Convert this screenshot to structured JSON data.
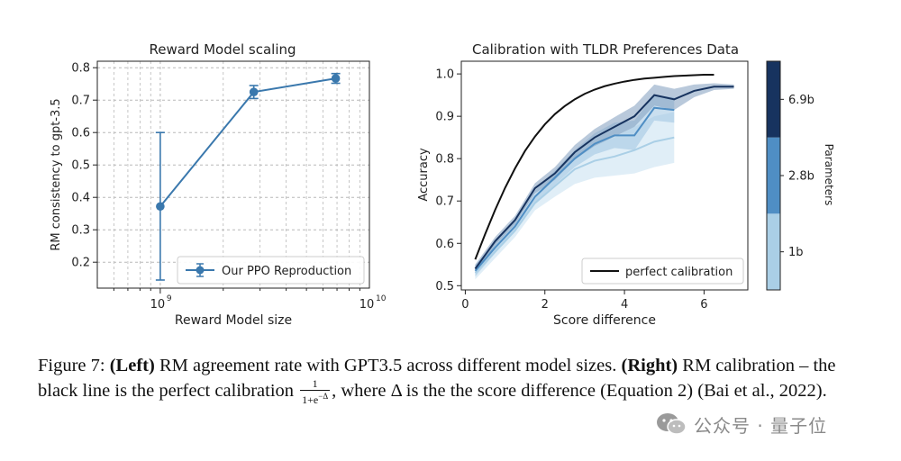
{
  "chart_data": [
    {
      "type": "line",
      "title": "Reward Model scaling",
      "xlabel": "Reward Model size",
      "ylabel": "RM consistency to gpt-3.5",
      "xscale": "log",
      "xlim": [
        500000000,
        10000000000
      ],
      "ylim": [
        0.12,
        0.82
      ],
      "xticks": [
        {
          "v": 1000000000,
          "label": "10",
          "exp": "9"
        },
        {
          "v": 10000000000,
          "label": "10",
          "exp": "10"
        }
      ],
      "yticks": [
        0.2,
        0.3,
        0.4,
        0.5,
        0.6,
        0.7,
        0.8
      ],
      "grid": true,
      "legend_position": "lower-right",
      "series": [
        {
          "name": "Our PPO Reproduction",
          "color": "#3a78ad",
          "x": [
            1000000000,
            2800000000,
            6900000000
          ],
          "y": [
            0.372,
            0.725,
            0.767
          ],
          "err_low": [
            0.145,
            0.705,
            0.752
          ],
          "err_high": [
            0.6,
            0.745,
            0.782
          ]
        }
      ]
    },
    {
      "type": "line",
      "title": "Calibration with TLDR Preferences Data",
      "xlabel": "Score difference",
      "ylabel": "Accuracy",
      "xlim": [
        -0.1,
        7.1
      ],
      "ylim": [
        0.49,
        1.03
      ],
      "xticks": [
        0,
        2,
        4,
        6
      ],
      "yticks": [
        0.5,
        0.6,
        0.7,
        0.8,
        0.9,
        1.0
      ],
      "grid": false,
      "legend_position": "lower-right",
      "reference": {
        "name": "perfect calibration",
        "color": "#111111",
        "x": [
          0.25,
          0.5,
          0.75,
          1.0,
          1.25,
          1.5,
          1.75,
          2.0,
          2.25,
          2.5,
          2.75,
          3.0,
          3.25,
          3.5,
          3.75,
          4.0,
          4.25,
          4.5,
          4.75,
          5.0,
          5.25,
          5.5,
          5.75,
          6.0,
          6.25
        ],
        "y": [
          0.562,
          0.622,
          0.679,
          0.731,
          0.777,
          0.818,
          0.852,
          0.881,
          0.905,
          0.924,
          0.94,
          0.953,
          0.963,
          0.971,
          0.977,
          0.982,
          0.986,
          0.989,
          0.991,
          0.993,
          0.995,
          0.996,
          0.997,
          0.998,
          0.998
        ]
      },
      "series": [
        {
          "color": "#aacfe6",
          "band_color": "#c7e0f0",
          "x": [
            0.25,
            0.75,
            1.25,
            1.75,
            2.25,
            2.75,
            3.25,
            3.75,
            4.25,
            4.75,
            5.25
          ],
          "y": [
            0.53,
            0.58,
            0.63,
            0.695,
            0.735,
            0.775,
            0.795,
            0.805,
            0.82,
            0.84,
            0.85
          ],
          "lo": [
            0.515,
            0.565,
            0.615,
            0.678,
            0.71,
            0.74,
            0.755,
            0.76,
            0.765,
            0.78,
            0.79
          ],
          "hi": [
            0.545,
            0.595,
            0.645,
            0.712,
            0.76,
            0.81,
            0.835,
            0.85,
            0.875,
            0.9,
            0.91
          ]
        },
        {
          "color": "#4f8ec4",
          "band_color": "#9ec4e2",
          "x": [
            0.25,
            0.75,
            1.25,
            1.75,
            2.25,
            2.75,
            3.25,
            3.75,
            4.25,
            4.75,
            5.25
          ],
          "y": [
            0.535,
            0.59,
            0.64,
            0.71,
            0.755,
            0.8,
            0.835,
            0.855,
            0.855,
            0.92,
            0.915
          ],
          "lo": [
            0.522,
            0.577,
            0.627,
            0.696,
            0.738,
            0.78,
            0.81,
            0.825,
            0.82,
            0.89,
            0.885
          ],
          "hi": [
            0.548,
            0.603,
            0.653,
            0.724,
            0.772,
            0.82,
            0.86,
            0.885,
            0.89,
            0.95,
            0.945
          ]
        },
        {
          "color": "#17335f",
          "band_color": "#7f9dbd",
          "x": [
            0.25,
            0.75,
            1.25,
            1.75,
            2.25,
            2.75,
            3.25,
            3.75,
            4.25,
            4.75,
            5.25,
            5.75,
            6.25,
            6.75
          ],
          "y": [
            0.54,
            0.605,
            0.655,
            0.73,
            0.765,
            0.815,
            0.85,
            0.875,
            0.9,
            0.95,
            0.94,
            0.96,
            0.97,
            0.97
          ],
          "lo": [
            0.53,
            0.595,
            0.645,
            0.718,
            0.75,
            0.798,
            0.83,
            0.852,
            0.875,
            0.925,
            0.915,
            0.945,
            0.962,
            0.965
          ],
          "hi": [
            0.55,
            0.615,
            0.665,
            0.742,
            0.78,
            0.832,
            0.87,
            0.898,
            0.925,
            0.975,
            0.965,
            0.975,
            0.978,
            0.975
          ]
        }
      ],
      "colorbar": {
        "label": "Parameters",
        "segments": [
          {
            "label": "1b",
            "color": "#aacfe6"
          },
          {
            "label": "2.8b",
            "color": "#4f8ec4"
          },
          {
            "label": "6.9b",
            "color": "#17335f"
          }
        ]
      }
    }
  ],
  "caption": {
    "figure_label": "Figure 7: ",
    "left_label": "(Left)",
    "text1": " RM agreement rate with GPT3.5 across different model sizes. ",
    "right_label": "(Right)",
    "text2": " RM calibration – the black line is the perfect calibration ",
    "frac_num": "1",
    "frac_den": "1+e",
    "frac_den_exp": "−Δ",
    "text3": ", where Δ is the the score difference (Equation 2) (Bai et al., 2022)."
  },
  "watermark": {
    "text": "公众号 · 量子位",
    "icon": "wechat-icon"
  }
}
